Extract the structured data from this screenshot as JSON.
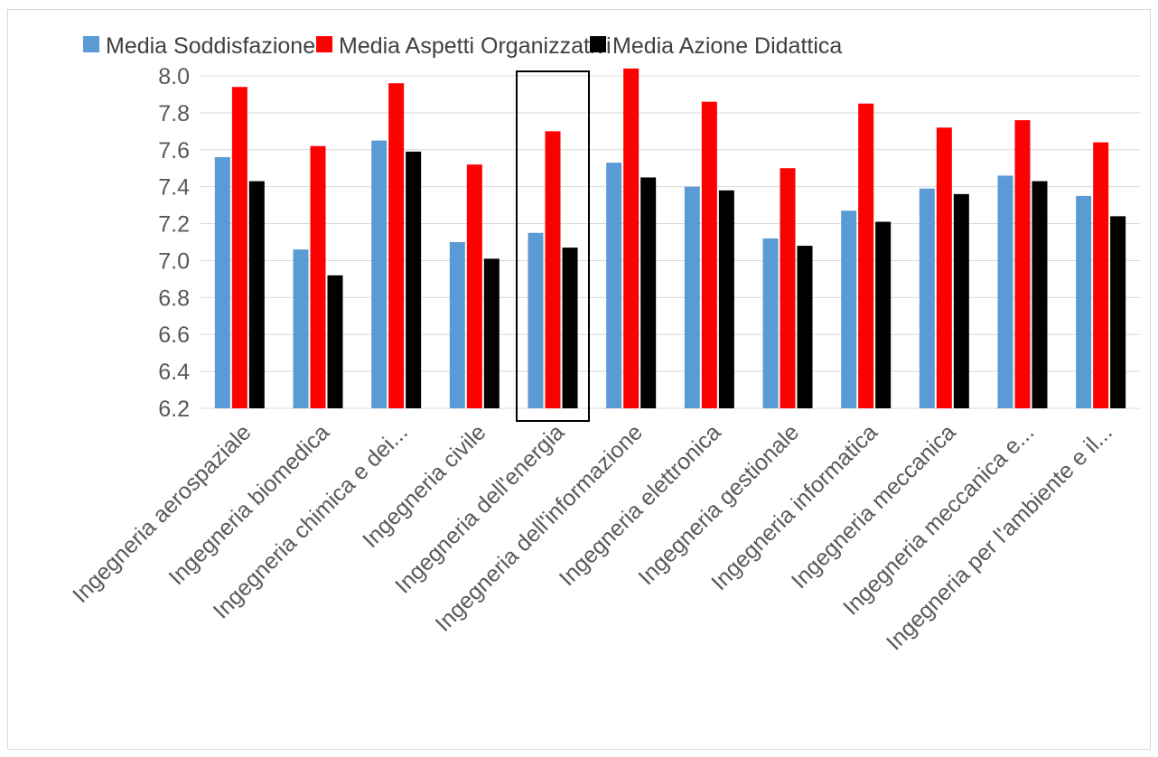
{
  "chart_data": {
    "type": "bar",
    "title": "",
    "xlabel": "",
    "ylabel": "",
    "ylim": [
      6.2,
      8.0
    ],
    "yticks": [
      "6.2",
      "6.4",
      "6.6",
      "6.8",
      "7.0",
      "7.2",
      "7.4",
      "7.6",
      "7.8",
      "8.0"
    ],
    "grid": true,
    "legend_position": "top",
    "categories": [
      "Ingegneria aerospaziale",
      "Ingegneria biomedica",
      "Ingegneria chimica e dei...",
      "Ingegneria civile",
      "Ingegneria dell'energia",
      "Ingegneria dell'informazione",
      "Ingegneria elettronica",
      "Ingegneria gestionale",
      "Ingegneria informatica",
      "Ingegneria meccanica",
      "Ingegneria meccanica e...",
      "Ingegneria per l'ambiente e il..."
    ],
    "highlighted_category": "Ingegneria dell'energia",
    "series": [
      {
        "name": "Media Soddisfazione",
        "color": "#5b9bd5",
        "values": [
          7.56,
          7.06,
          7.65,
          7.1,
          7.15,
          7.53,
          7.4,
          7.12,
          7.27,
          7.39,
          7.46,
          7.35
        ]
      },
      {
        "name": "Media Aspetti Organizzativi",
        "color": "#ff0000",
        "values": [
          7.94,
          7.62,
          7.96,
          7.52,
          7.7,
          8.04,
          7.86,
          7.5,
          7.85,
          7.72,
          7.76,
          7.64
        ]
      },
      {
        "name": "Media Azione Didattica",
        "color": "#000000",
        "values": [
          7.43,
          6.92,
          7.59,
          7.01,
          7.07,
          7.45,
          7.38,
          7.08,
          7.21,
          7.36,
          7.43,
          7.24
        ]
      }
    ]
  }
}
